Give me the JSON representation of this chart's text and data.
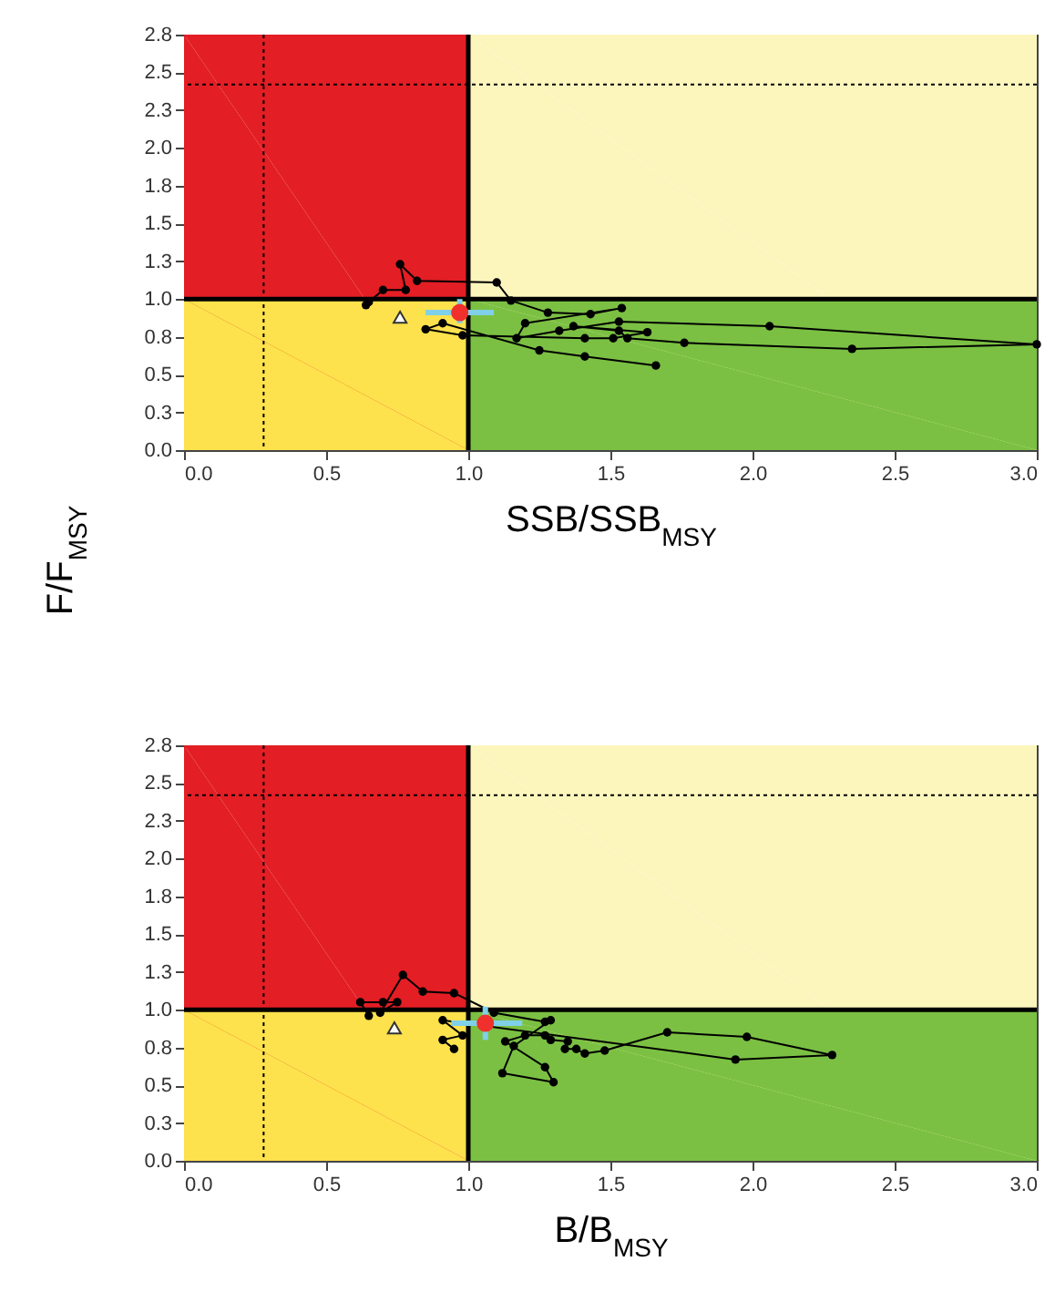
{
  "chart_data": [
    {
      "type": "line",
      "xlabel": "SSB/SSB$_{MSY}$",
      "ylabel": "F/F$_{MSY}$",
      "xlim": [
        0,
        3
      ],
      "ylim": [
        0,
        2.75
      ],
      "xticks": [
        {
          "value": 0,
          "label": "0.0"
        },
        {
          "value": 0.5,
          "label": "0.5"
        },
        {
          "value": 1,
          "label": "1.0"
        },
        {
          "value": 1.5,
          "label": "1.5"
        },
        {
          "value": 2,
          "label": "2.0"
        },
        {
          "value": 2.5,
          "label": "2.5"
        },
        {
          "value": 3,
          "label": "3.0"
        }
      ],
      "yticks": [
        {
          "value": 0,
          "label": "0.0"
        },
        {
          "value": 0.25,
          "label": "0.3"
        },
        {
          "value": 0.5,
          "label": "0.5"
        },
        {
          "value": 0.75,
          "label": "0.8"
        },
        {
          "value": 1,
          "label": "1.0"
        },
        {
          "value": 1.25,
          "label": "1.3"
        },
        {
          "value": 1.5,
          "label": "1.5"
        },
        {
          "value": 1.75,
          "label": "1.8"
        },
        {
          "value": 2,
          "label": "2.0"
        },
        {
          "value": 2.25,
          "label": "2.3"
        },
        {
          "value": 2.5,
          "label": "2.5"
        },
        {
          "value": 2.75,
          "label": "2.8"
        }
      ],
      "ref_lines": [
        {
          "axis": "x",
          "value": 1,
          "line_style": "solid"
        },
        {
          "axis": "y",
          "value": 1,
          "line_style": "solid"
        },
        {
          "axis": "x",
          "value": 0.28,
          "line_style": "dotted"
        },
        {
          "axis": "y",
          "value": 2.42,
          "line_style": "dotted"
        }
      ],
      "series": [
        {
          "type": "area",
          "color": "#fcf6bd",
          "x": [
            1,
            3
          ],
          "values": [
            2.75,
            2.75
          ]
        },
        {
          "type": "area",
          "color": "#7bc043",
          "x": [
            1,
            3
          ],
          "values": [
            1,
            1
          ]
        },
        {
          "type": "area",
          "color": "#e31e24",
          "x": [
            0,
            1
          ],
          "values": [
            2.75,
            2.75
          ]
        },
        {
          "type": "area",
          "color": "#fde24d",
          "x": [
            0,
            1
          ],
          "values": [
            1,
            1
          ]
        },
        {
          "marker": "circle",
          "color": "#000000",
          "x": [
            0.64,
            0.65,
            0.7,
            0.78,
            0.76,
            0.82,
            1.1,
            1.15,
            1.28,
            1.43,
            1.54,
            1.2,
            1.17,
            1.32,
            1.53,
            2.06,
            3.0,
            2.35,
            1.76,
            1.56,
            1.53,
            1.37,
            1.63,
            1.51,
            1.41,
            0.98,
            0.85,
            0.91,
            1.25,
            1.41,
            1.66
          ],
          "values": [
            0.96,
            0.98,
            1.06,
            1.06,
            1.23,
            1.12,
            1.11,
            0.99,
            0.91,
            0.9,
            0.94,
            0.84,
            0.74,
            0.79,
            0.85,
            0.82,
            0.7,
            0.67,
            0.71,
            0.74,
            0.79,
            0.82,
            0.78,
            0.74,
            0.74,
            0.76,
            0.8,
            0.84,
            0.66,
            0.62,
            0.56
          ]
        },
        {
          "type": "scatter",
          "marker": "triangle",
          "color": "#ffffff",
          "x": [
            0.76
          ],
          "values": [
            0.88
          ]
        },
        {
          "type": "scatter",
          "marker": "circle",
          "color": "#f0302c",
          "x": [
            0.97
          ],
          "values": [
            0.91
          ],
          "errors": [
            [
              0.84,
              1.0
            ]
          ],
          "xerrors": [
            [
              0.85,
              1.09
            ]
          ]
        }
      ]
    },
    {
      "type": "line",
      "xlabel": "B/B$_{MSY}$",
      "xlim": [
        0,
        3
      ],
      "ylim": [
        0,
        2.75
      ],
      "xticks": [
        {
          "value": 0,
          "label": "0.0"
        },
        {
          "value": 0.5,
          "label": "0.5"
        },
        {
          "value": 1,
          "label": "1.0"
        },
        {
          "value": 1.5,
          "label": "1.5"
        },
        {
          "value": 2,
          "label": "2.0"
        },
        {
          "value": 2.5,
          "label": "2.5"
        },
        {
          "value": 3,
          "label": "3.0"
        }
      ],
      "yticks": [
        {
          "value": 0,
          "label": "0.0"
        },
        {
          "value": 0.25,
          "label": "0.3"
        },
        {
          "value": 0.5,
          "label": "0.5"
        },
        {
          "value": 0.75,
          "label": "0.8"
        },
        {
          "value": 1,
          "label": "1.0"
        },
        {
          "value": 1.25,
          "label": "1.3"
        },
        {
          "value": 1.5,
          "label": "1.5"
        },
        {
          "value": 1.75,
          "label": "1.8"
        },
        {
          "value": 2,
          "label": "2.0"
        },
        {
          "value": 2.25,
          "label": "2.3"
        },
        {
          "value": 2.5,
          "label": "2.5"
        },
        {
          "value": 2.75,
          "label": "2.8"
        }
      ],
      "ref_lines": [
        {
          "axis": "x",
          "value": 1,
          "line_style": "solid"
        },
        {
          "axis": "y",
          "value": 1,
          "line_style": "solid"
        },
        {
          "axis": "x",
          "value": 0.28,
          "line_style": "dotted"
        },
        {
          "axis": "y",
          "value": 2.42,
          "line_style": "dotted"
        }
      ],
      "series": [
        {
          "type": "area",
          "color": "#fcf6bd",
          "x": [
            1,
            3
          ],
          "values": [
            2.75,
            2.75
          ]
        },
        {
          "type": "area",
          "color": "#7bc043",
          "x": [
            1,
            3
          ],
          "values": [
            1,
            1
          ]
        },
        {
          "type": "area",
          "color": "#e31e24",
          "x": [
            0,
            1
          ],
          "values": [
            2.75,
            2.75
          ]
        },
        {
          "type": "area",
          "color": "#fde24d",
          "x": [
            0,
            1
          ],
          "values": [
            1,
            1
          ]
        },
        {
          "marker": "circle",
          "color": "#000000",
          "x": [
            0.65,
            0.62,
            0.7,
            0.75,
            0.69,
            0.77,
            0.84,
            0.95,
            1.09,
            1.27,
            1.29,
            1.16,
            1.12,
            1.3,
            1.27,
            1.13,
            1.2,
            1.27,
            1.29,
            1.35,
            1.34,
            1.38,
            1.41,
            1.48,
            1.7,
            1.98,
            2.28,
            1.94,
            0.91,
            0.98,
            0.91,
            0.95
          ],
          "values": [
            0.96,
            1.05,
            1.05,
            1.05,
            0.98,
            1.23,
            1.12,
            1.11,
            0.98,
            0.92,
            0.93,
            0.76,
            0.58,
            0.52,
            0.62,
            0.79,
            0.83,
            0.83,
            0.8,
            0.79,
            0.74,
            0.74,
            0.71,
            0.73,
            0.85,
            0.82,
            0.7,
            0.67,
            0.93,
            0.83,
            0.8,
            0.74
          ]
        },
        {
          "type": "scatter",
          "marker": "triangle",
          "color": "#ffffff",
          "x": [
            0.74
          ],
          "values": [
            0.88
          ]
        },
        {
          "type": "scatter",
          "marker": "circle",
          "color": "#f0302c",
          "x": [
            1.06
          ],
          "values": [
            0.91
          ],
          "errors": [
            [
              0.8,
              1.02
            ]
          ],
          "xerrors": [
            [
              0.94,
              1.19
            ]
          ]
        }
      ]
    }
  ]
}
